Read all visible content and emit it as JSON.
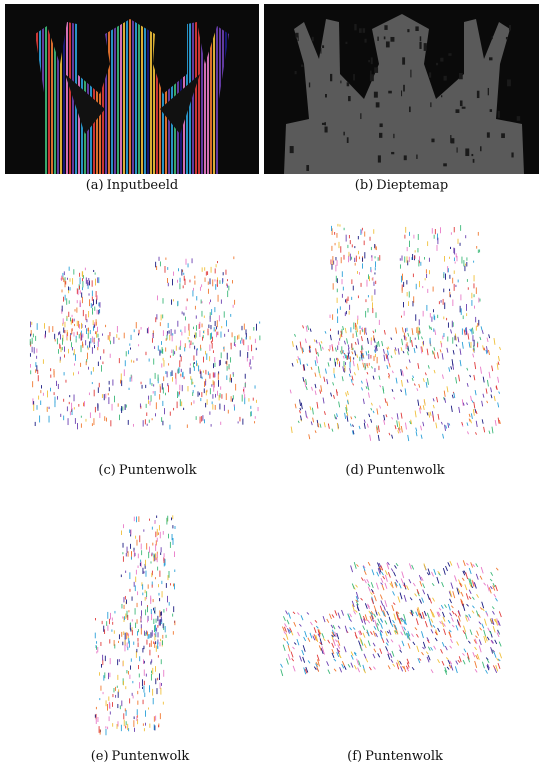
{
  "figure": {
    "panels": [
      {
        "label": "(a)",
        "caption": "Inputbeeld"
      },
      {
        "label": "(b)",
        "caption": "Dieptemap"
      },
      {
        "label": "(c)",
        "caption": "Puntenwolk"
      },
      {
        "label": "(d)",
        "caption": "Puntenwolk"
      },
      {
        "label": "(e)",
        "caption": "Puntenwolk"
      },
      {
        "label": "(f)",
        "caption": "Puntenwolk"
      }
    ]
  },
  "colors": {
    "stripe_palette": [
      "#e03a3a",
      "#2aa0d8",
      "#f0c03a",
      "#6a3fb0",
      "#3cb878",
      "#e87ac8",
      "#1a1a80",
      "#f07830"
    ],
    "depth_dark": "#0a0a0a",
    "depth_body": "#5a5a5a"
  }
}
